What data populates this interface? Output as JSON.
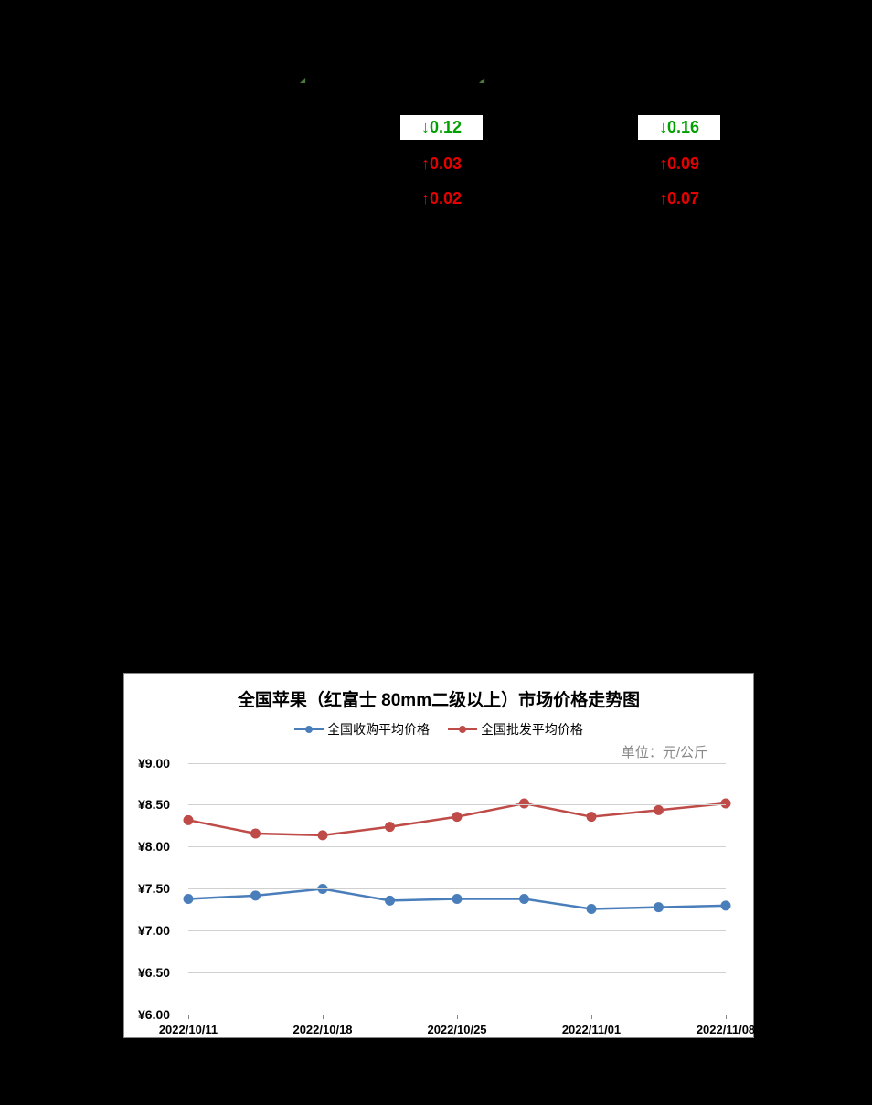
{
  "markers": {
    "m1": "◢",
    "m2": "◢"
  },
  "price_table": {
    "rows": [
      {
        "col1": {
          "value": "↓0.12",
          "style": "white-box"
        },
        "col2": {
          "value": "↓0.16",
          "style": "white-box"
        }
      },
      {
        "col1": {
          "value": "↑0.03",
          "style": "red-text"
        },
        "col2": {
          "value": "↑0.09",
          "style": "red-text"
        }
      },
      {
        "col1": {
          "value": "↑0.02",
          "style": "red-text"
        },
        "col2": {
          "value": "↑0.07",
          "style": "red-text"
        }
      }
    ]
  },
  "chart": {
    "type": "line",
    "title": "全国苹果（红富士 80mm二级以上）市场价格走势图",
    "legend": [
      {
        "label": "全国收购平均价格",
        "color": "#4a7ebb"
      },
      {
        "label": "全国批发平均价格",
        "color": "#be4b48"
      }
    ],
    "unit_label": "单位：元/公斤",
    "ylim": [
      6.0,
      9.0
    ],
    "ytick_step": 0.5,
    "y_ticks": [
      "¥6.00",
      "¥6.50",
      "¥7.00",
      "¥7.50",
      "¥8.00",
      "¥8.50",
      "¥9.00"
    ],
    "x_labels": [
      "2022/10/11",
      "2022/10/18",
      "2022/10/25",
      "2022/11/01",
      "2022/11/08"
    ],
    "x_label_indices": [
      0,
      2,
      4,
      6,
      8
    ],
    "x_points": 9,
    "series": [
      {
        "name": "全国收购平均价格",
        "color": "#4a7ebb",
        "marker": "circle",
        "data": [
          7.38,
          7.42,
          7.5,
          7.36,
          7.38,
          7.38,
          7.26,
          7.28,
          7.3
        ]
      },
      {
        "name": "全国批发平均价格",
        "color": "#be4b48",
        "marker": "circle",
        "data": [
          8.32,
          8.16,
          8.14,
          8.24,
          8.36,
          8.52,
          8.36,
          8.44,
          8.52
        ]
      }
    ],
    "background_color": "#ffffff",
    "grid_color": "#d0d0d0",
    "line_width": 2.5,
    "marker_size": 5,
    "title_fontsize": 19,
    "label_fontsize": 14
  }
}
